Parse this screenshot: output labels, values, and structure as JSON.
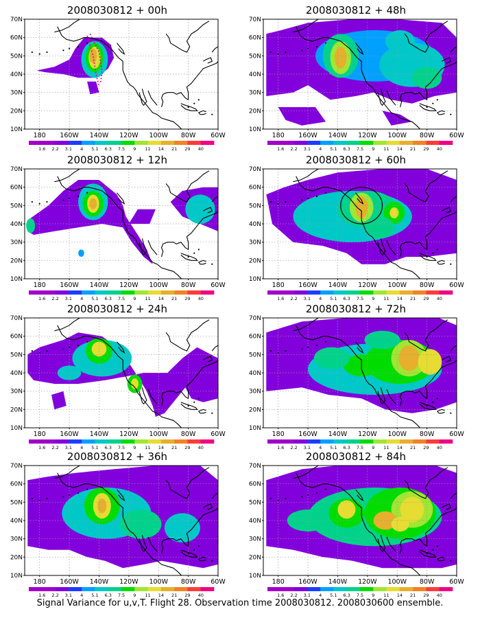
{
  "panels": [
    {
      "title": "2008030812 + 00h"
    },
    {
      "title": "2008030812 + 48h"
    },
    {
      "title": "2008030812 + 12h"
    },
    {
      "title": "2008030812 + 60h"
    },
    {
      "title": "2008030812 + 24h"
    },
    {
      "title": "2008030812 + 72h"
    },
    {
      "title": "2008030812 + 36h"
    },
    {
      "title": "2008030812 + 84h"
    }
  ],
  "axes": {
    "lat_labels": [
      "70N",
      "60N",
      "50N",
      "40N",
      "30N",
      "20N",
      "10N"
    ],
    "lon_labels": [
      "180",
      "160W",
      "140W",
      "120W",
      "100W",
      "80W",
      "60W"
    ]
  },
  "colorbar": {
    "labels": [
      "1.6",
      "2.2",
      "3.1",
      "4",
      "5.1",
      "6.3",
      "7.5",
      "9",
      "11",
      "14",
      "21",
      "29",
      "40"
    ],
    "colors": [
      "#a000c8",
      "#8200dc",
      "#1e3cff",
      "#00a0ff",
      "#00c8c8",
      "#00d28c",
      "#00dc00",
      "#a0e632",
      "#e6dc32",
      "#e6af2d",
      "#f08228",
      "#fa3c3c",
      "#f00082"
    ]
  },
  "caption": "Signal Variance for u,v,T. Flight 28. Observation time 2008030812. 2008030600 ensemble."
}
